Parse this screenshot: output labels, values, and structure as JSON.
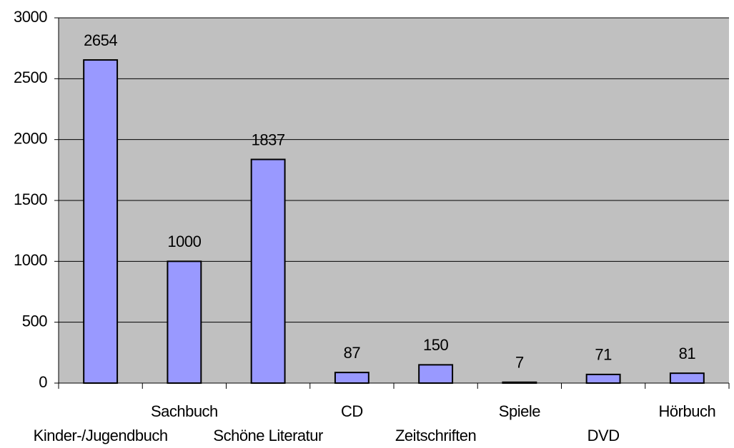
{
  "chart_data": {
    "type": "bar",
    "categories": [
      "Kinder-/Jugendbuch",
      "Sachbuch",
      "Schöne Literatur",
      "CD",
      "Zeitschriften",
      "Spiele",
      "DVD",
      "Hörbuch"
    ],
    "values": [
      2654,
      1000,
      1837,
      87,
      150,
      7,
      71,
      81
    ],
    "color": "#9999ff",
    "ylim": [
      0,
      3000
    ],
    "yticks": [
      0,
      500,
      1000,
      1500,
      2000,
      2500,
      3000
    ],
    "grid": true
  }
}
